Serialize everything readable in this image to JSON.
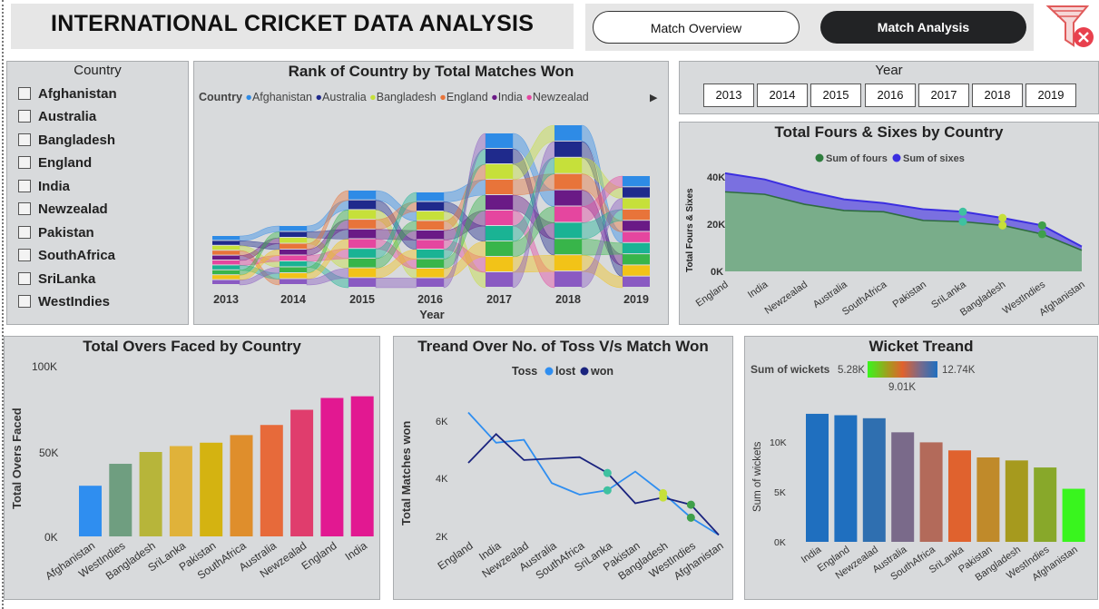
{
  "header": {
    "title": "INTERNATIONAL CRICKET DATA ANALYSIS"
  },
  "nav": {
    "overview_label": "Match Overview",
    "analysis_label": "Match Analysis"
  },
  "country_slicer": {
    "title": "Country",
    "items": [
      "Afghanistan",
      "Australia",
      "Bangladesh",
      "England",
      "India",
      "Newzealad",
      "Pakistan",
      "SouthAfrica",
      "SriLanka",
      "WestIndies"
    ]
  },
  "year_slicer": {
    "title": "Year",
    "items": [
      "2013",
      "2014",
      "2015",
      "2016",
      "2017",
      "2018",
      "2019"
    ]
  },
  "colors": {
    "panel_bg": "#d8dadc",
    "fours": "#5a9e6f",
    "sixes": "#6a5de0",
    "toss_lost": "#2f8ef0",
    "toss_won": "#1a237e"
  },
  "charts": {
    "ribbon": {
      "title": "Rank of Country by Total Matches Won",
      "legend_title": "Country",
      "legend_items": [
        {
          "label": "Afghanistan",
          "color": "#2e8be6"
        },
        {
          "label": "Australia",
          "color": "#1f2a8c"
        },
        {
          "label": "Bangladesh",
          "color": "#c6e03a"
        },
        {
          "label": "England",
          "color": "#e8743a"
        },
        {
          "label": "India",
          "color": "#6a1a86"
        },
        {
          "label": "Newzealad",
          "color": "#e5469f"
        }
      ],
      "legend_more": "▶",
      "xlabel": "Year"
    },
    "fours_sixes": {
      "title": "Total Fours & Sixes by Country",
      "legend": [
        "Sum of fours",
        "Sum of sixes"
      ],
      "ylabel": "Total Fours & Sixes",
      "yticks": [
        "40K",
        "20K",
        "0K"
      ]
    },
    "overs": {
      "title": "Total Overs Faced by Country",
      "ylabel": "Total Overs Faced",
      "yticks": [
        "100K",
        "50K",
        "0K"
      ]
    },
    "toss": {
      "title": "Treand Over No. of Toss V/s Match Won",
      "legend_title": "Toss",
      "legend": [
        "lost",
        "won"
      ],
      "ylabel": "Total Matches won",
      "yticks": [
        "6K",
        "4K",
        "2K"
      ]
    },
    "wickets": {
      "title": "Wicket Treand",
      "legend_title": "Sum of wickets",
      "grad_min": "5.28K",
      "grad_max": "12.74K",
      "grad_mid": "9.01K",
      "ylabel": "Sum of wickets",
      "yticks": [
        "10K",
        "5K",
        "0K"
      ]
    }
  },
  "chart_data": [
    {
      "type": "area",
      "title": "Total Fours & Sixes by Country",
      "categories": [
        "England",
        "India",
        "Newzealad",
        "Australia",
        "SouthAfrica",
        "Pakistan",
        "SriLanka",
        "Bangladesh",
        "WestIndies",
        "Afghanistan"
      ],
      "series": [
        {
          "name": "Sum of fours",
          "values": [
            32000,
            31000,
            27000,
            24500,
            24000,
            20500,
            20000,
            18500,
            15000,
            8500
          ]
        },
        {
          "name": "Sum of sixes",
          "values": [
            7500,
            6000,
            5500,
            4500,
            3500,
            4500,
            4000,
            3000,
            3500,
            1500
          ]
        }
      ],
      "ylabel": "Total Fours & Sixes",
      "ylim": [
        0,
        42000
      ]
    },
    {
      "type": "bar",
      "title": "Total Overs Faced by Country",
      "categories": [
        "Afghanistan",
        "WestIndies",
        "Bangladesh",
        "SriLanka",
        "Pakistan",
        "SouthAfrica",
        "Australia",
        "Newzealad",
        "England",
        "India"
      ],
      "values": [
        30000,
        43000,
        50000,
        53500,
        55500,
        60000,
        66000,
        75000,
        82000,
        83000
      ],
      "colors": [
        "#2f8ef0",
        "#6f9e80",
        "#b7b53a",
        "#e0b23a",
        "#d4b311",
        "#df8e2c",
        "#e76a3a",
        "#e03d6d",
        "#e21891",
        "#e21891"
      ],
      "ylabel": "Total Overs Faced",
      "ylim": [
        0,
        100000
      ]
    },
    {
      "type": "line",
      "title": "Treand Over No. of Toss V/s Match Won",
      "categories": [
        "England",
        "India",
        "Newzealad",
        "Australia",
        "SouthAfrica",
        "SriLanka",
        "Pakistan",
        "Bangladesh",
        "WestIndies",
        "Afghanistan"
      ],
      "series": [
        {
          "name": "lost",
          "values": [
            6300,
            5250,
            5350,
            3850,
            3450,
            3600,
            4250,
            3500,
            2650,
            2050
          ]
        },
        {
          "name": "won",
          "values": [
            4550,
            5550,
            4650,
            4700,
            4750,
            4200,
            3150,
            3350,
            3100,
            2050
          ]
        }
      ],
      "ylabel": "Total Matches won",
      "ylim": [
        2000,
        6800
      ]
    },
    {
      "type": "bar",
      "title": "Wicket Treand",
      "categories": [
        "India",
        "England",
        "Newzealad",
        "Australia",
        "SouthAfrica",
        "SriLanka",
        "Pakistan",
        "Bangladesh",
        "WestIndies",
        "Afghanistan"
      ],
      "values": [
        12740,
        12600,
        12300,
        10900,
        9900,
        9100,
        8400,
        8100,
        7400,
        5280
      ],
      "colors": [
        "#1f6fbf",
        "#1f6fbf",
        "#2f6fb0",
        "#7a6a8a",
        "#b36a5a",
        "#e0622e",
        "#c08a2a",
        "#a69a1e",
        "#88a82a",
        "#39f51e"
      ],
      "ylabel": "Sum of wickets",
      "ylim": [
        0,
        14000
      ]
    }
  ]
}
